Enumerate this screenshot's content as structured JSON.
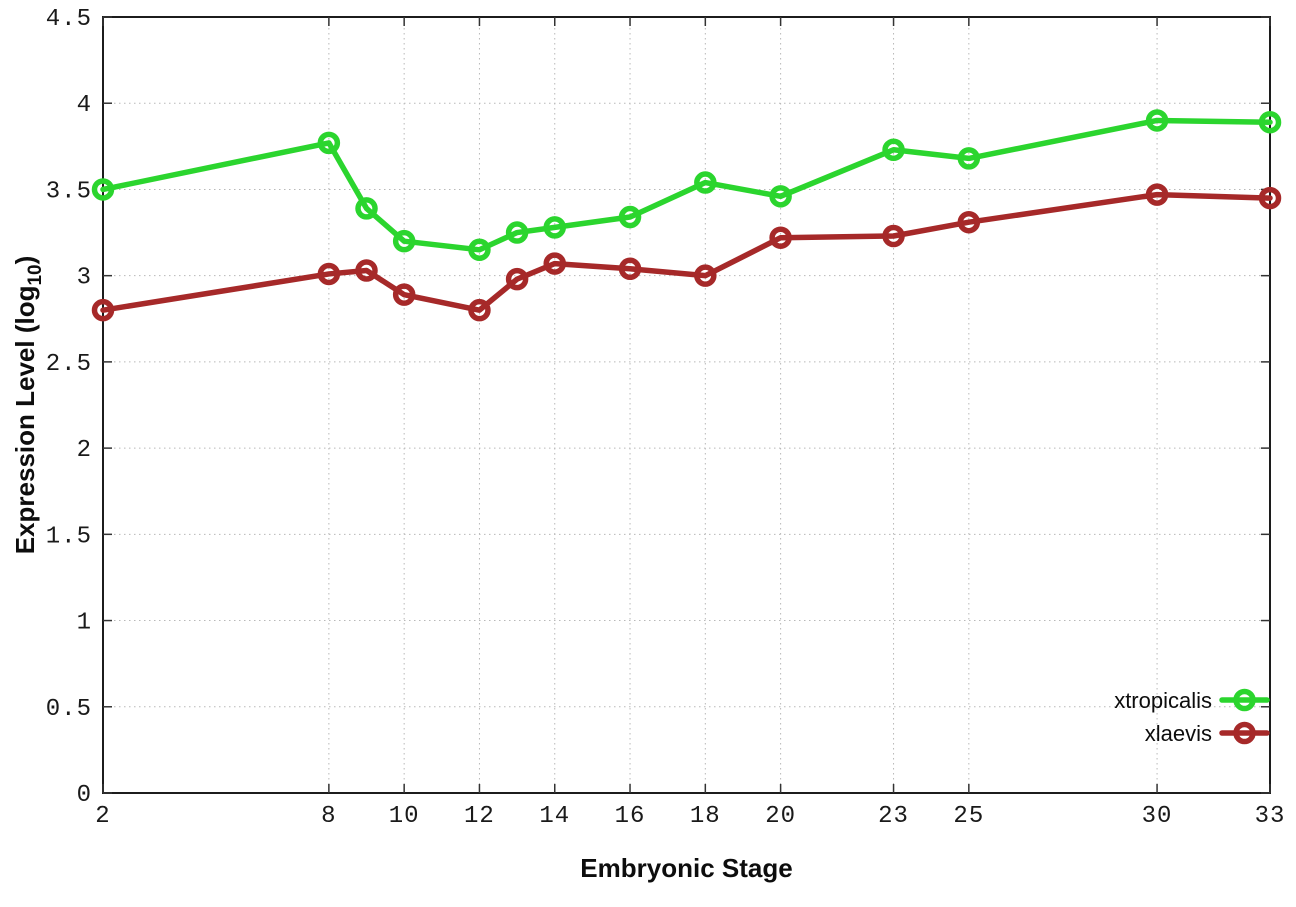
{
  "chart_data": {
    "type": "line",
    "title": "",
    "xlabel": "Embryonic Stage",
    "ylabel": {
      "main": "Expression Level (log",
      "subscript": "10",
      "suffix": ")"
    },
    "x": [
      2,
      8,
      9,
      10,
      12,
      13,
      14,
      16,
      18,
      20,
      23,
      25,
      30,
      33
    ],
    "series": [
      {
        "name": "xtropicalis",
        "color": "#2bd52e",
        "values": [
          3.5,
          3.77,
          3.39,
          3.2,
          3.15,
          3.25,
          3.28,
          3.34,
          3.54,
          3.46,
          3.73,
          3.68,
          3.9,
          3.89
        ]
      },
      {
        "name": "xlaevis",
        "color": "#a62929",
        "values": [
          2.8,
          3.01,
          3.03,
          2.89,
          2.8,
          2.98,
          3.07,
          3.04,
          3.0,
          3.22,
          3.23,
          3.31,
          3.47,
          3.45
        ]
      }
    ],
    "xticks": [
      2,
      8,
      10,
      12,
      14,
      16,
      18,
      20,
      23,
      25,
      30,
      33
    ],
    "yticks": [
      0,
      0.5,
      1,
      1.5,
      2,
      2.5,
      3,
      3.5,
      4,
      4.5
    ],
    "xlim": [
      2,
      33
    ],
    "ylim": [
      0,
      4.5
    ],
    "grid": true,
    "legend_position": "inside-bottom-right",
    "legend_entries": [
      "xtropicalis",
      "xlaevis"
    ],
    "colors": {
      "border": "#1c1c1c",
      "grid": "#b8b8b8",
      "tick": "#333333",
      "text": "#1a1a1a"
    }
  }
}
